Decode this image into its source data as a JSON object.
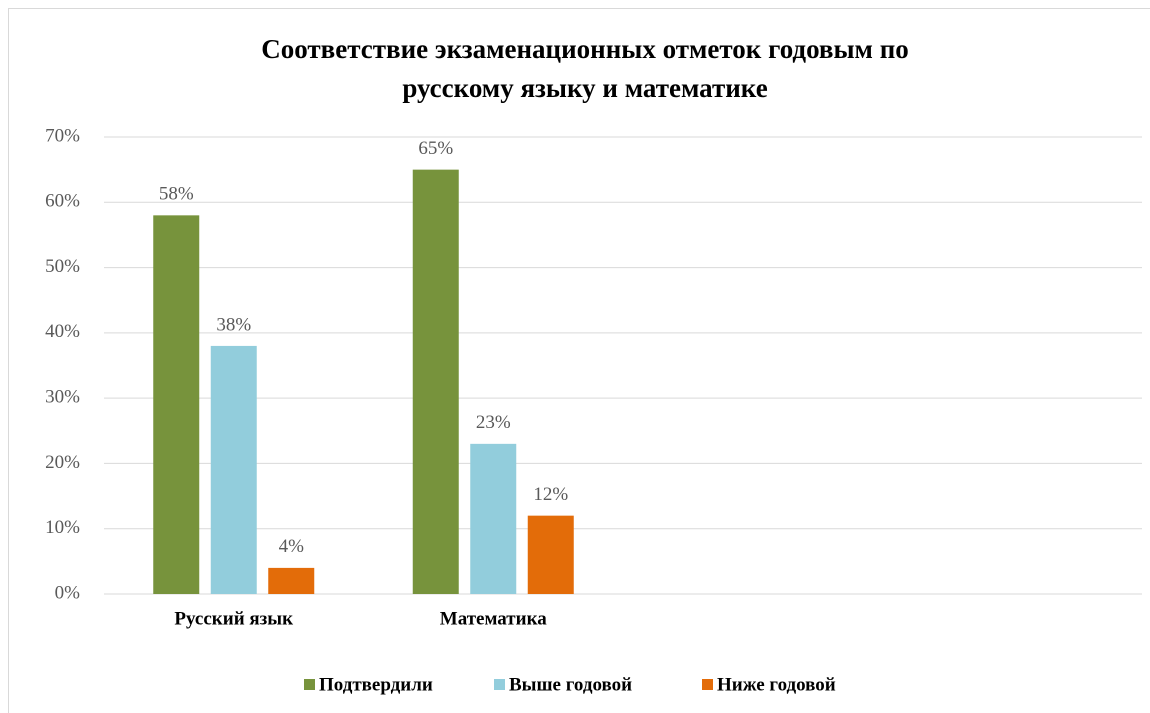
{
  "chart_data": {
    "type": "bar",
    "title": [
      "Соответствие экзаменационных отметок годовым по",
      "русскому языку и математике"
    ],
    "categories": [
      "Русский язык",
      "Математика",
      null,
      null
    ],
    "series": [
      {
        "name": "Подтвердили",
        "color": "#77933c",
        "values": [
          58,
          65,
          null,
          null
        ],
        "value_labels": [
          "58%",
          "65%",
          null,
          null
        ]
      },
      {
        "name": "Выше годовой",
        "color": "#92cddc",
        "values": [
          38,
          23,
          null,
          null
        ],
        "value_labels": [
          "38%",
          "23%",
          null,
          null
        ]
      },
      {
        "name": "Ниже годовой",
        "color": "#e36c09",
        "values": [
          4,
          12,
          null,
          null
        ],
        "value_labels": [
          "4%",
          "12%",
          null,
          null
        ]
      }
    ],
    "ylim": [
      0,
      70
    ],
    "yticks": [
      {
        "value": 0,
        "label": "0%"
      },
      {
        "value": 10,
        "label": "10%"
      },
      {
        "value": 20,
        "label": "20%"
      },
      {
        "value": 30,
        "label": "30%"
      },
      {
        "value": 40,
        "label": "40%"
      },
      {
        "value": 50,
        "label": "50%"
      },
      {
        "value": 60,
        "label": "60%"
      },
      {
        "value": 70,
        "label": "70%"
      }
    ],
    "grid": true,
    "legend": "bottom"
  }
}
